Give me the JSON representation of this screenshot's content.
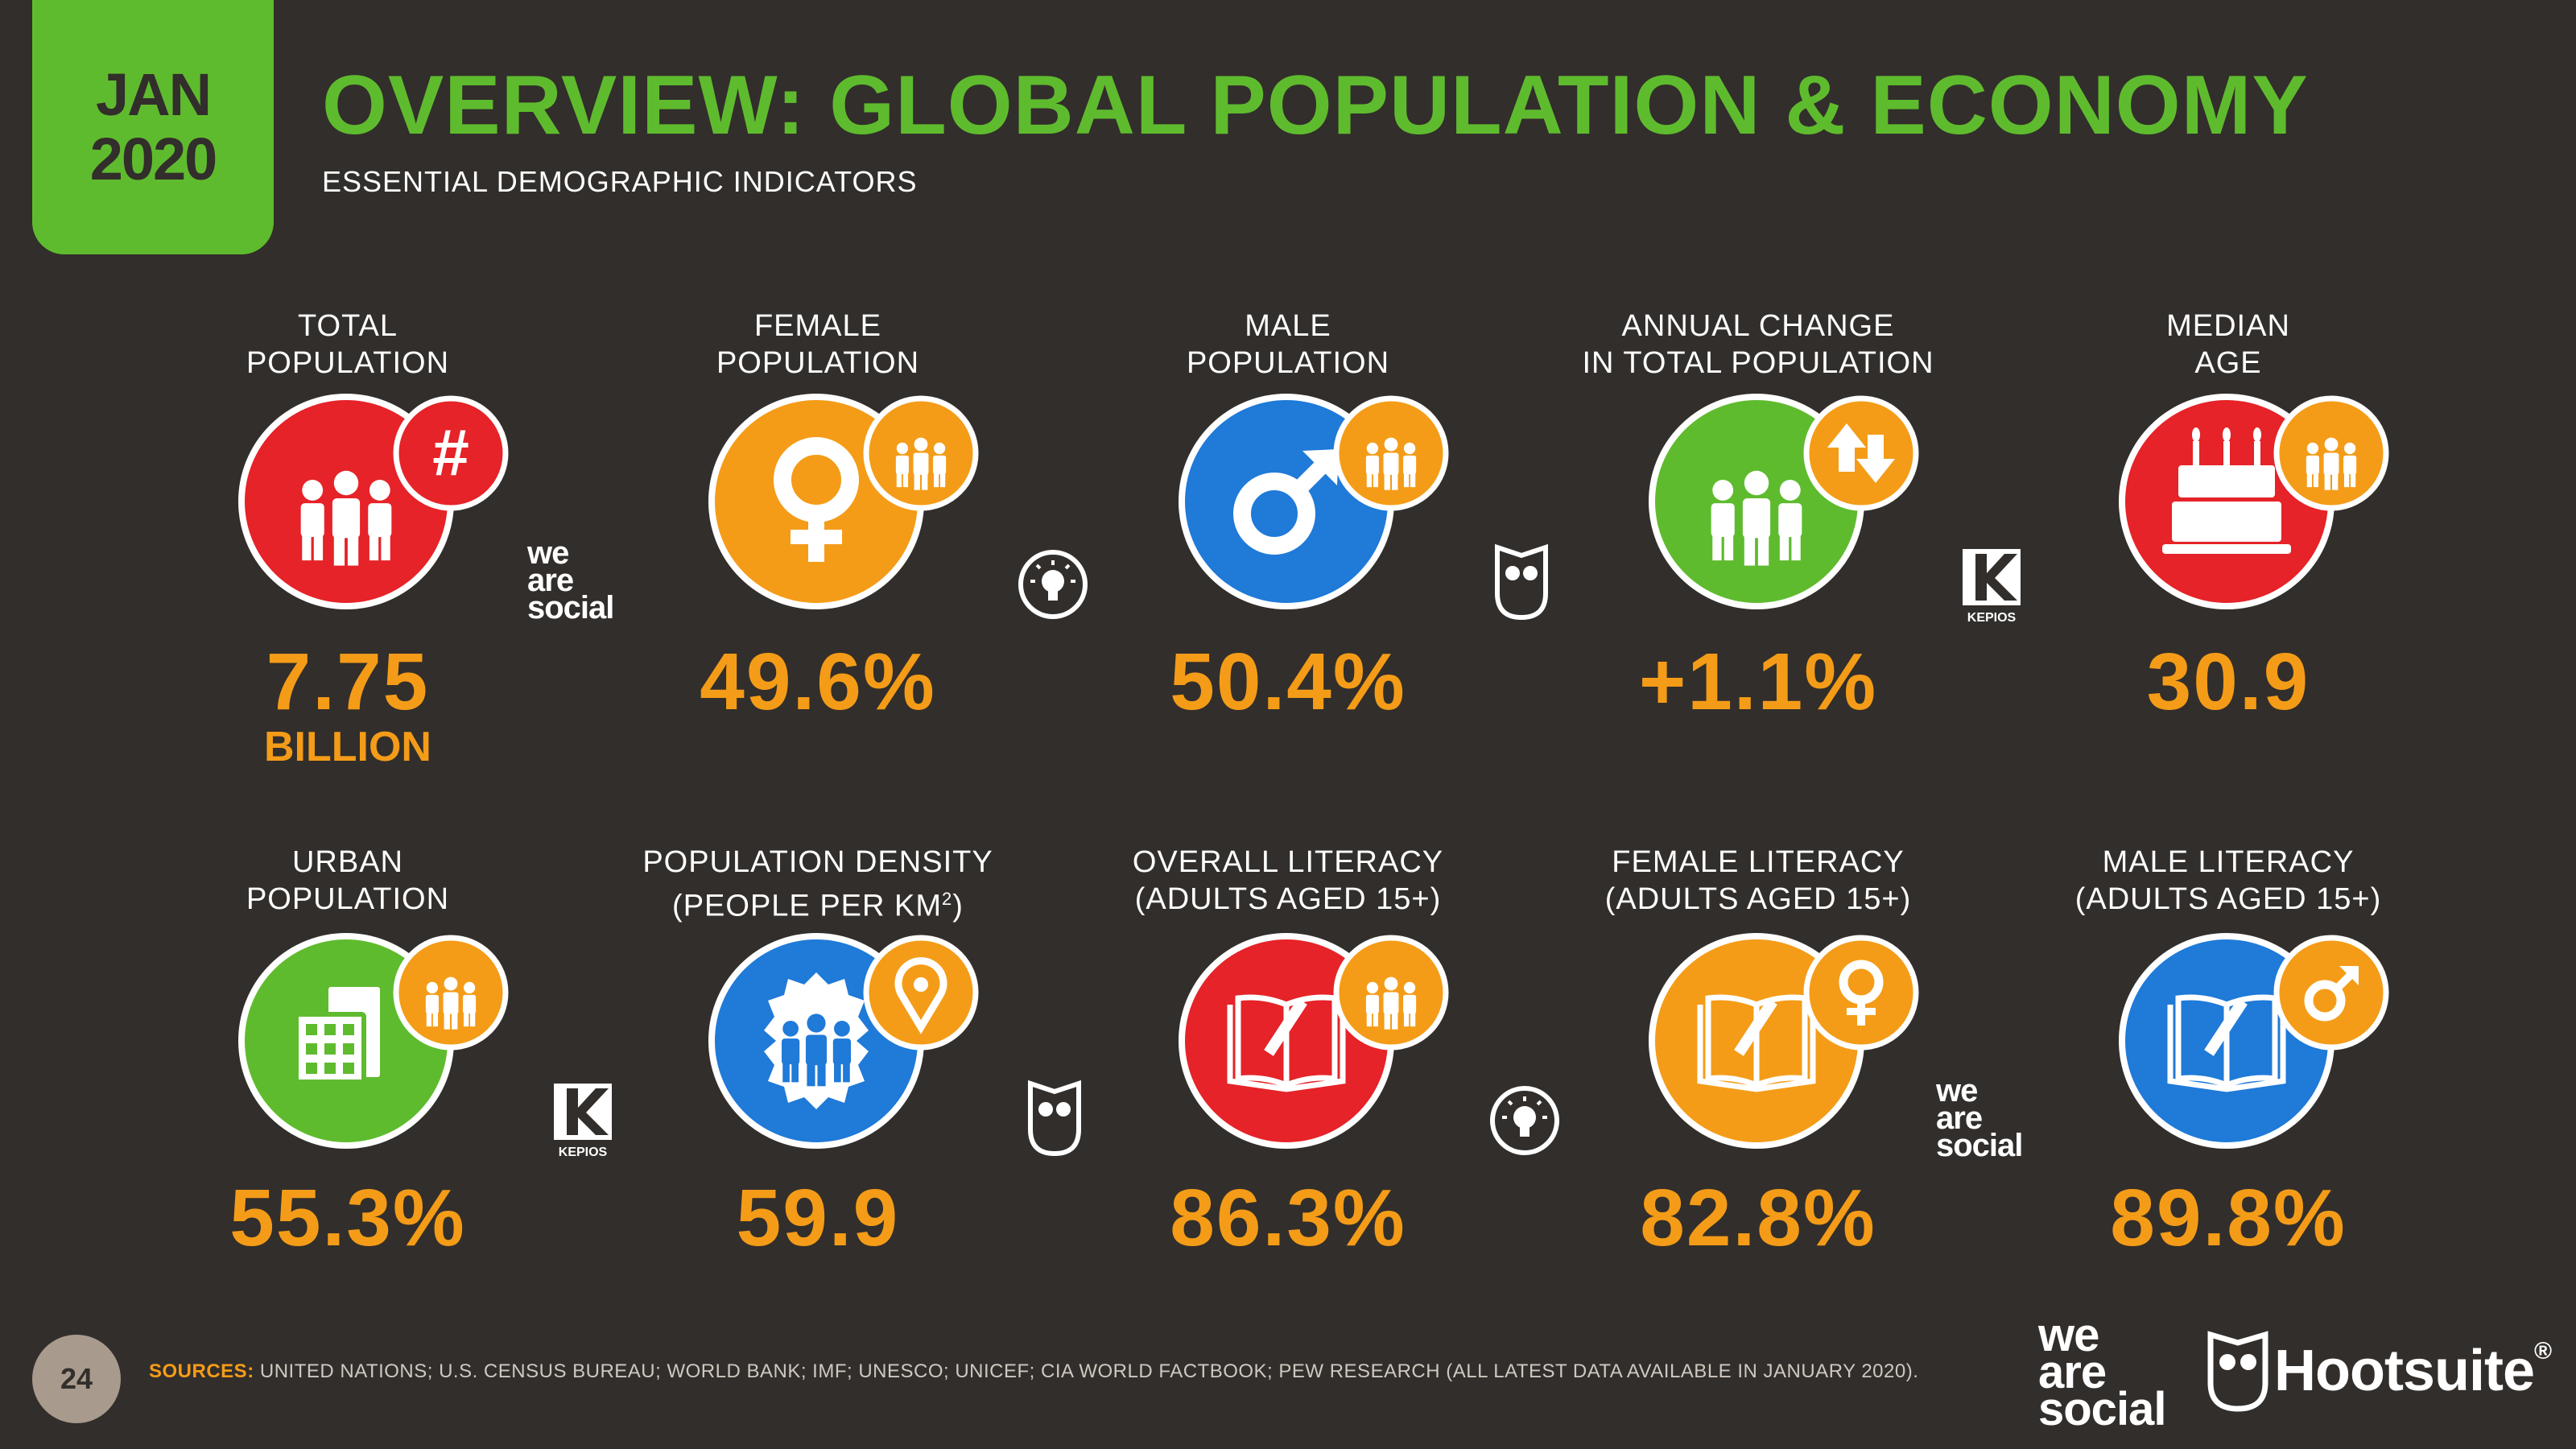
{
  "header": {
    "month": "JAN",
    "year": "2020",
    "title": "OVERVIEW: GLOBAL POPULATION & ECONOMY",
    "subtitle": "ESSENTIAL DEMOGRAPHIC INDICATORS"
  },
  "stats_row1": [
    {
      "label_line1": "TOTAL",
      "label_line2": "POPULATION",
      "value": "7.75",
      "unit": "BILLION",
      "icon": "people-hash-icon",
      "color": "#e52328"
    },
    {
      "label_line1": "FEMALE",
      "label_line2": "POPULATION",
      "value": "49.6%",
      "icon": "female-symbol-icon",
      "color": "#f49c18"
    },
    {
      "label_line1": "MALE",
      "label_line2": "POPULATION",
      "value": "50.4%",
      "icon": "male-symbol-icon",
      "color": "#1f7ad8"
    },
    {
      "label_line1": "ANNUAL CHANGE",
      "label_line2": "IN TOTAL POPULATION",
      "value": "+1.1%",
      "icon": "people-updown-icon",
      "color": "#5fbb2e"
    },
    {
      "label_line1": "MEDIAN",
      "label_line2": "AGE",
      "value": "30.9",
      "icon": "birthday-cake-icon",
      "color": "#e52328"
    }
  ],
  "stats_row2": [
    {
      "label_line1": "URBAN",
      "label_line2": "POPULATION",
      "value": "55.3%",
      "icon": "city-building-icon",
      "color": "#5fbb2e"
    },
    {
      "label_line1": "POPULATION DENSITY",
      "label_line2": "(PEOPLE PER KM",
      "label_sup": "2",
      "label_end": ")",
      "value": "59.9",
      "icon": "density-pin-icon",
      "color": "#1f7ad8"
    },
    {
      "label_line1": "OVERALL LITERACY",
      "label_line2": "(ADULTS AGED 15+)",
      "value": "86.3%",
      "icon": "book-pencil-icon",
      "color": "#e52328"
    },
    {
      "label_line1": "FEMALE LITERACY",
      "label_line2": "(ADULTS AGED 15+)",
      "value": "82.8%",
      "icon": "book-female-icon",
      "color": "#f49c18"
    },
    {
      "label_line1": "MALE LITERACY",
      "label_line2": "(ADULTS AGED 15+)",
      "value": "89.8%",
      "icon": "book-male-icon",
      "color": "#1f7ad8"
    }
  ],
  "logos": {
    "we_are_social": [
      "we",
      "are",
      "social"
    ],
    "kepios": "KEPIOS",
    "hootsuite": "Hootsuite",
    "registered": "®"
  },
  "footer": {
    "page_number": "24",
    "sources_label": "SOURCES:",
    "sources_text": " UNITED NATIONS; U.S. CENSUS BUREAU; WORLD BANK; IMF; UNESCO; UNICEF; CIA WORLD FACTBOOK; PEW RESEARCH (ALL LATEST DATA AVAILABLE IN JANUARY 2020)."
  }
}
